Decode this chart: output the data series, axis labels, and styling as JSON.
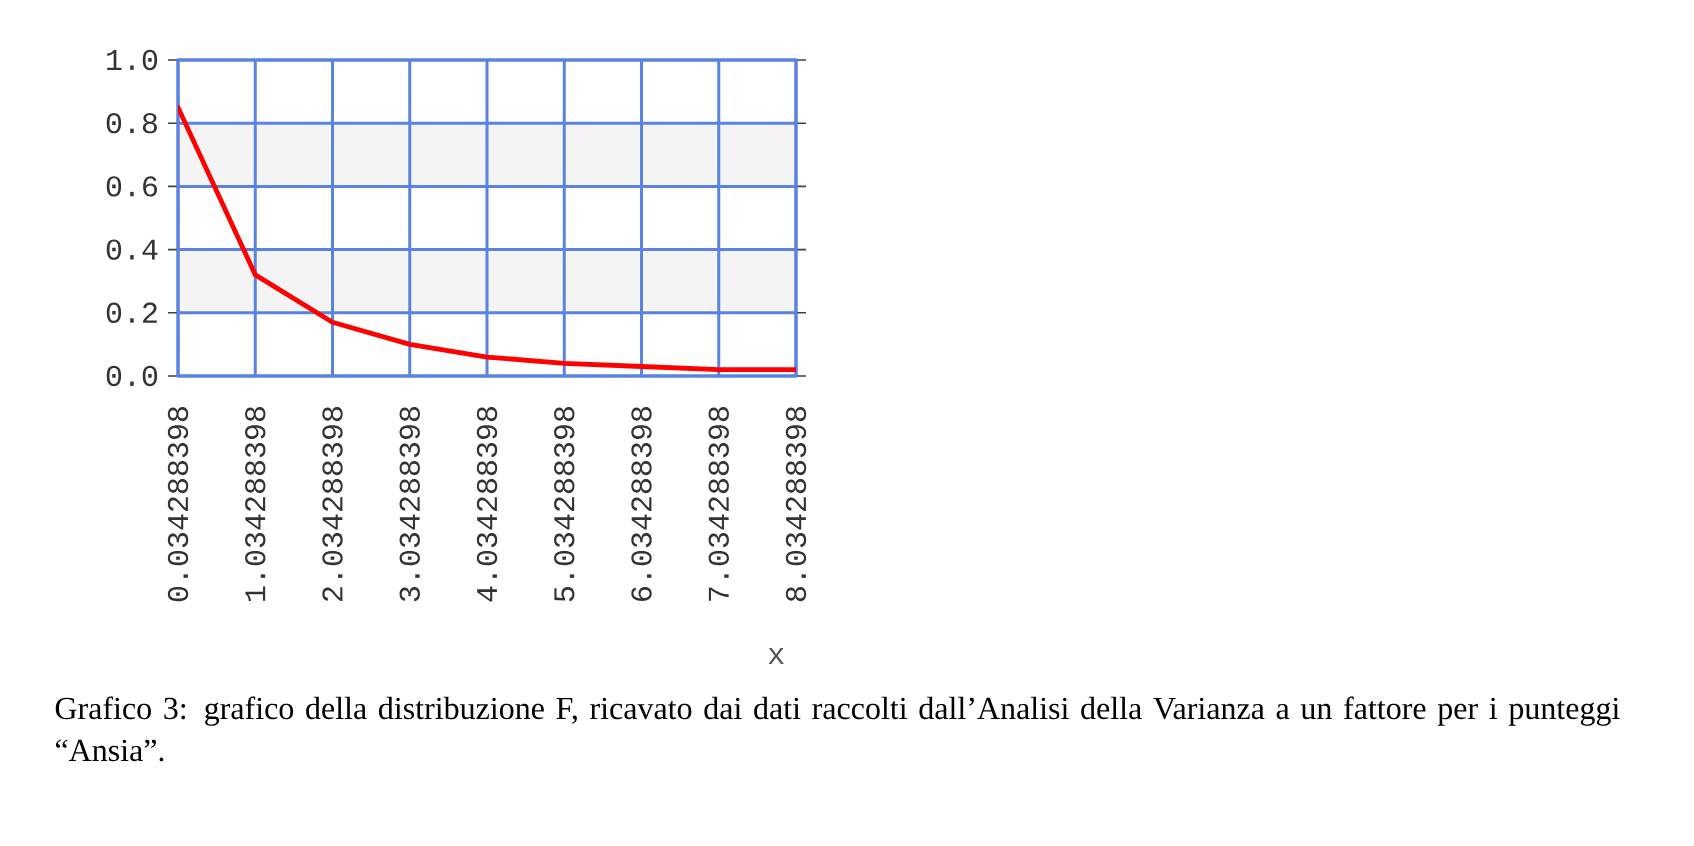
{
  "chart_data": {
    "type": "line",
    "x": [
      0.034288398,
      1.034288398,
      2.034288398,
      3.034288398,
      4.034288398,
      5.034288398,
      6.034288398,
      7.034288398,
      8.034288398
    ],
    "values": [
      0.85,
      0.32,
      0.17,
      0.1,
      0.06,
      0.04,
      0.03,
      0.02,
      0.02
    ],
    "color": "#ff0000",
    "line_style": "solid",
    "xlabel": "x",
    "xlim": [
      0.034288398,
      8.034288398
    ],
    "xticks": [
      0.034288398,
      1.034288398,
      2.034288398,
      3.034288398,
      4.034288398,
      5.034288398,
      6.034288398,
      7.034288398,
      8.034288398
    ],
    "ylim": [
      0,
      1
    ],
    "yticks": [
      {
        "value": 0,
        "label": "0.0"
      },
      {
        "value": 0.2,
        "label": "0.2"
      },
      {
        "value": 0.4,
        "label": "0.4"
      },
      {
        "value": 0.6,
        "label": "0.6"
      },
      {
        "value": 0.8,
        "label": "0.8"
      },
      {
        "value": 1,
        "label": "1.0"
      }
    ],
    "grid": true,
    "bands": [
      {
        "axis": "y",
        "from": 0.2,
        "to": 0.4,
        "color": "#f4f4f4"
      },
      {
        "axis": "y",
        "from": 0.6,
        "to": 0.8,
        "color": "#f4f4f4"
      }
    ],
    "annotations": [
      "Grafico 3: grafico della distribuzione F, ricavato dai dati raccolti dall’Analisi della Varianza a un fattore per i punteggi “Ansia”."
    ]
  }
}
